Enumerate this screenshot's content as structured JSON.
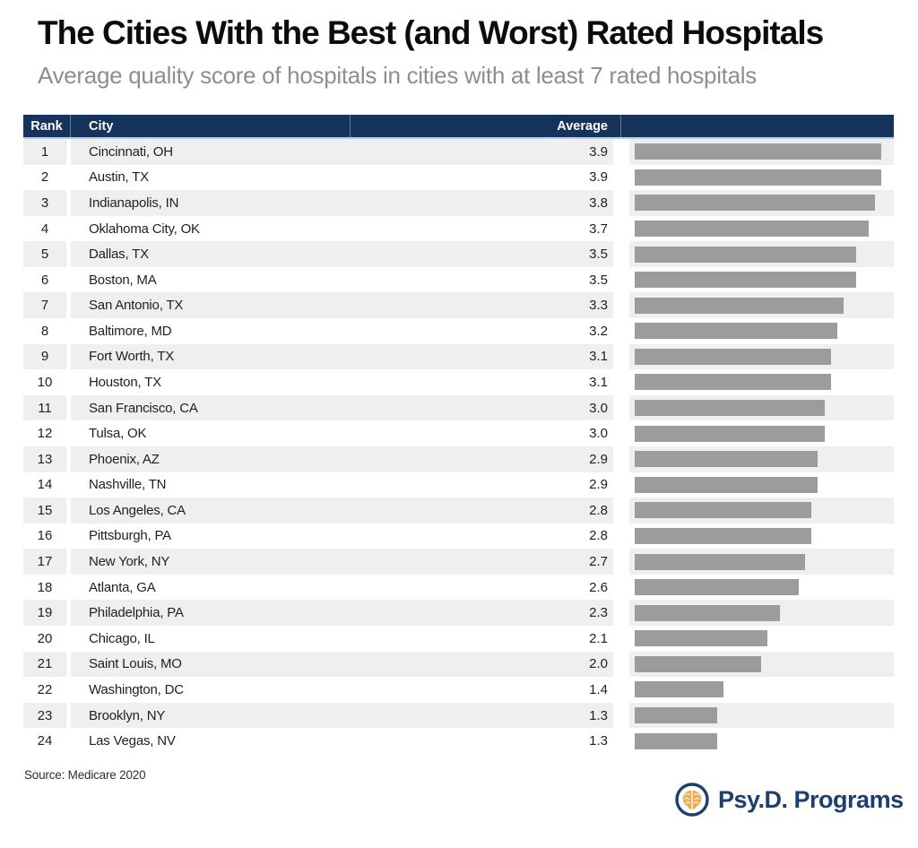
{
  "chart_data": {
    "type": "bar",
    "orientation": "horizontal",
    "title": "The Cities With the Best (and Worst) Rated Hospitals",
    "subtitle": "Average quality score of hospitals in cities with at least 7 rated hospitals",
    "source": "Source: Medicare 2020",
    "columns": [
      "Rank",
      "City",
      "Average"
    ],
    "ranks": [
      1,
      2,
      3,
      4,
      5,
      6,
      7,
      8,
      9,
      10,
      11,
      12,
      13,
      14,
      15,
      16,
      17,
      18,
      19,
      20,
      21,
      22,
      23,
      24
    ],
    "categories": [
      "Cincinnati, OH",
      "Austin, TX",
      "Indianapolis, IN",
      "Oklahoma City, OK",
      "Dallas, TX",
      "Boston, MA",
      "San Antonio, TX",
      "Baltimore, MD",
      "Fort Worth, TX",
      "Houston, TX",
      "San Francisco, CA",
      "Tulsa, OK",
      "Phoenix, AZ",
      "Nashville, TN",
      "Los Angeles, CA",
      "Pittsburgh, PA",
      "New York, NY",
      "Atlanta, GA",
      "Philadelphia, PA",
      "Chicago, IL",
      "Saint Louis, MO",
      "Washington, DC",
      "Brooklyn, NY",
      "Las Vegas, NV"
    ],
    "values": [
      3.9,
      3.9,
      3.8,
      3.7,
      3.5,
      3.5,
      3.3,
      3.2,
      3.1,
      3.1,
      3.0,
      3.0,
      2.9,
      2.9,
      2.8,
      2.8,
      2.7,
      2.6,
      2.3,
      2.1,
      2.0,
      1.4,
      1.3,
      1.3
    ],
    "value_labels": [
      "3.9",
      "3.9",
      "3.8",
      "3.7",
      "3.5",
      "3.5",
      "3.3",
      "3.2",
      "3.1",
      "3.1",
      "3.0",
      "3.0",
      "2.9",
      "2.9",
      "2.8",
      "2.8",
      "2.7",
      "2.6",
      "2.3",
      "2.1",
      "2.0",
      "1.4",
      "1.3",
      "1.3"
    ],
    "xlim": [
      0,
      3.9
    ],
    "grid": false,
    "legend": "none",
    "bar_color": "#9c9c9c"
  },
  "logo": {
    "text": "Psy.D. Programs",
    "icon": "brain-in-circle-icon"
  },
  "colors": {
    "header_bg": "#16335c",
    "header_underline": "#b7cde6",
    "row_stripe": "#efefef",
    "bar": "#9c9c9c",
    "subtitle_text": "#8e8e8e",
    "logo_navy": "#1d3f6e",
    "logo_gold": "#e8b054"
  }
}
